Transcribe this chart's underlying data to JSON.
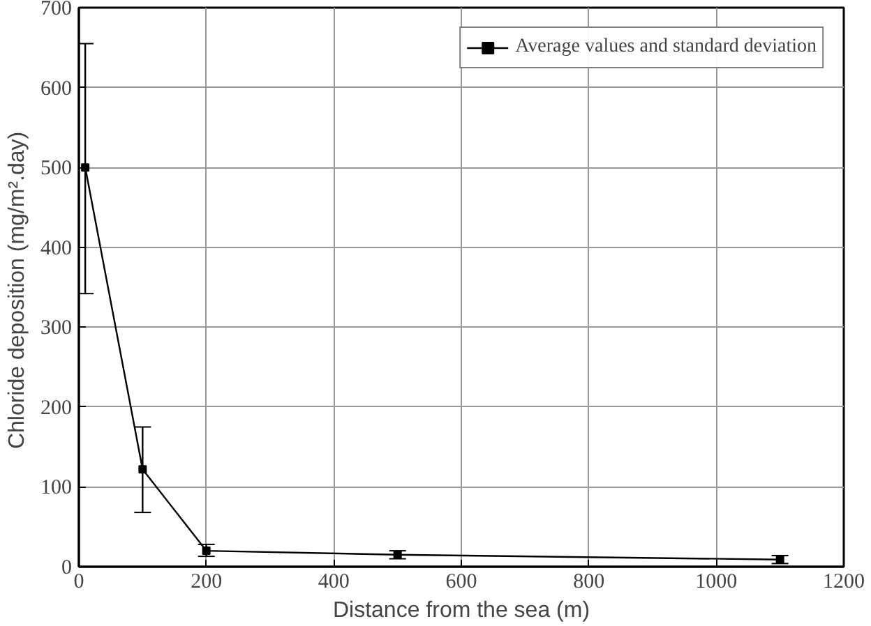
{
  "chart_data": {
    "type": "line",
    "xlabel": "Distance from the sea (m)",
    "ylabel": "Chloride deposition  (mg/m².day)",
    "x": [
      10,
      100,
      200,
      500,
      1100
    ],
    "series": [
      {
        "name": "Average values and standard deviation",
        "color": "#000000",
        "values": [
          500,
          122,
          20,
          15,
          9
        ],
        "errors": [
          [
            342,
            655
          ],
          [
            68,
            175
          ],
          [
            13,
            28
          ],
          [
            10,
            20
          ],
          [
            4,
            14
          ]
        ]
      }
    ],
    "xlim": [
      0,
      1200
    ],
    "xticks": [
      0,
      200,
      400,
      600,
      800,
      1000,
      1200
    ],
    "ylim": [
      0,
      700
    ],
    "yticks": [
      0,
      100,
      200,
      300,
      400,
      500,
      600,
      700
    ],
    "grid": true,
    "legend": "top right",
    "marker": "square",
    "line_style": "solid"
  }
}
